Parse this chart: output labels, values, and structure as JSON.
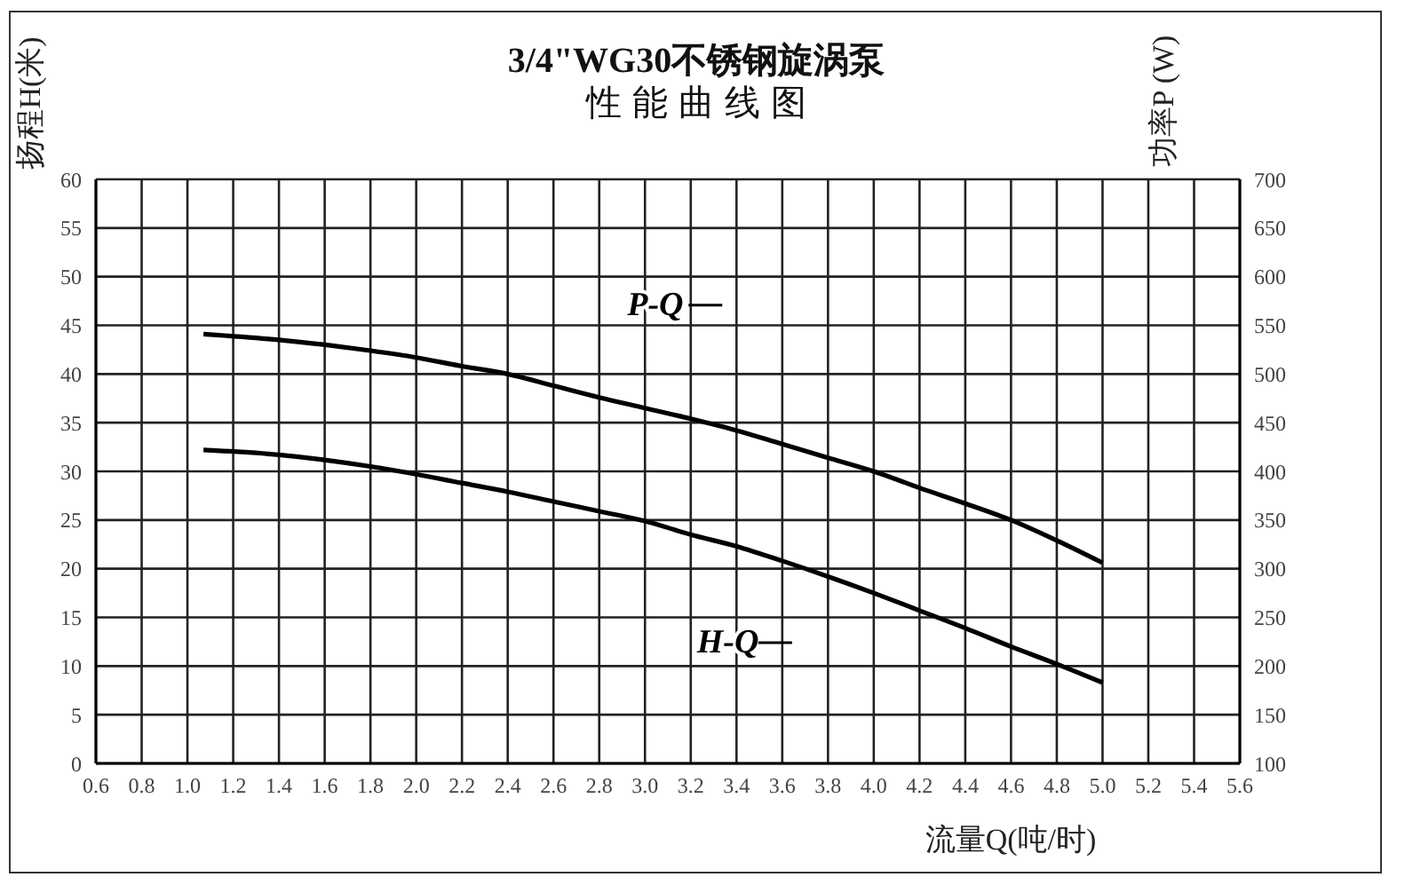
{
  "chart_data": {
    "type": "line",
    "title": "3/4\"WG30不锈钢旋涡泵",
    "subtitle": "性能曲线图",
    "xlabel": "流量Q(吨/时)",
    "ylabel": "扬程H(米)",
    "y2label": "功率P (W)",
    "x": [
      1.07,
      1.4,
      1.8,
      2.0,
      2.2,
      2.4,
      2.6,
      2.8,
      3.0,
      3.2,
      3.4,
      3.6,
      3.8,
      4.0,
      4.2,
      4.4,
      4.6,
      4.8,
      5.0
    ],
    "series": [
      {
        "name": "H-Q",
        "color": "#000000",
        "values": [
          32.2,
          31.7,
          30.5,
          29.7,
          28.8,
          27.9,
          26.9,
          25.9,
          24.9,
          23.5,
          22.3,
          20.8,
          19.2,
          17.5,
          15.7,
          13.9,
          12.0,
          10.2,
          8.3
        ]
      },
      {
        "name": "P-Q",
        "color": "#000000",
        "axis": "y2",
        "values": [
          541,
          535,
          524,
          517,
          508,
          500,
          488,
          476,
          465,
          454,
          442,
          428,
          414,
          400,
          383,
          367,
          350,
          329,
          306
        ]
      }
    ],
    "xlim": [
      0.6,
      5.6
    ],
    "xticks": [
      0.6,
      0.8,
      {
        "value": 1,
        "label": "1.0"
      },
      1.2,
      1.4,
      1.6,
      1.8,
      {
        "value": 2,
        "label": "2.0"
      },
      2.2,
      2.4,
      2.6,
      2.8,
      {
        "value": 3,
        "label": "3.0"
      },
      3.2,
      3.4,
      3.6,
      3.8,
      {
        "value": 4,
        "label": "4.0"
      },
      4.2,
      4.4,
      4.6,
      4.8,
      {
        "value": 5,
        "label": "5.0"
      },
      5.2,
      5.4,
      5.6
    ],
    "ylim": [
      0,
      60
    ],
    "yticks": [
      0,
      5,
      10,
      15,
      20,
      25,
      30,
      35,
      40,
      45,
      50,
      55,
      60
    ],
    "y2lim": [
      100,
      700
    ],
    "y2ticks": [
      100,
      150,
      200,
      250,
      300,
      350,
      400,
      450,
      500,
      550,
      600,
      650,
      700
    ],
    "grid": true,
    "legend": "center",
    "marker": "none",
    "line_style": "solid"
  }
}
